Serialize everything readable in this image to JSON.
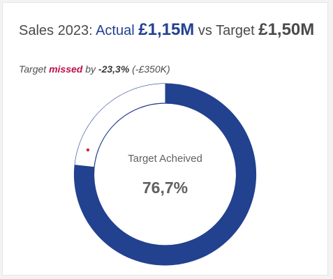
{
  "card": {
    "title_prefix": "Sales 2023:",
    "actual_word": "Actual",
    "actual_value": "£1,15M",
    "vs_word": "vs Target",
    "target_value": "£1,50M",
    "subtitle_prefix": "Target",
    "subtitle_missed": "missed",
    "subtitle_by": "by",
    "subtitle_pct": "-23,3%",
    "subtitle_amount": "(-£350K)"
  },
  "chart_data": {
    "type": "pie",
    "variant": "donut",
    "center_label": "Target Acheived",
    "center_value": "76,7%",
    "values": [
      76.7,
      23.3
    ],
    "colors": {
      "achieved": "#22418f",
      "remaining": "#ffffff",
      "outline": "#22418f",
      "marker": "#d9232d"
    }
  }
}
